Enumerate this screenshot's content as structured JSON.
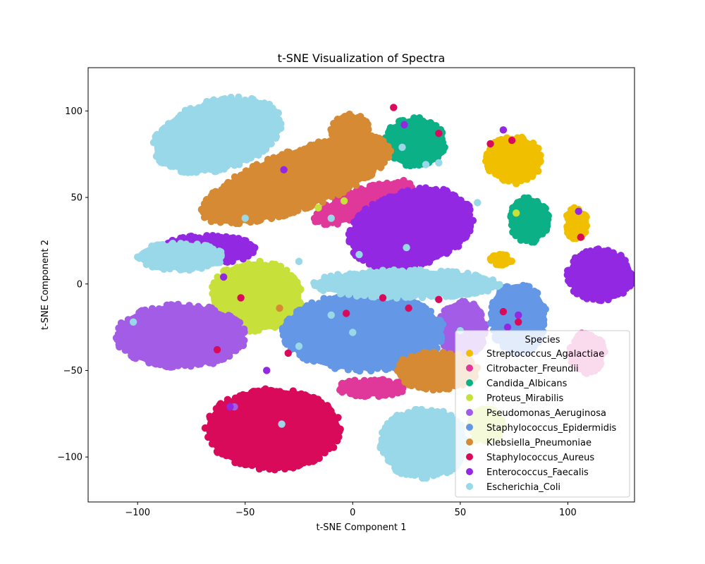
{
  "chart_data": {
    "type": "scatter",
    "title": "t-SNE Visualization of Spectra",
    "xlabel": "t-SNE Component 1",
    "ylabel": "t-SNE Component 2",
    "xlim": [
      -123,
      131
    ],
    "ylim": [
      -126,
      125
    ],
    "xticks": [
      -100,
      -50,
      0,
      50,
      100
    ],
    "yticks": [
      -100,
      -50,
      0,
      50,
      100
    ],
    "grid": false,
    "legend": {
      "title": "Species",
      "placement": "lower-right"
    },
    "series": [
      {
        "name": "Streptococcus_Agalactiae",
        "color": "#f0c000",
        "clusters": [
          {
            "cx": 75,
            "cy": 72,
            "rx": 13,
            "ry": 13
          },
          {
            "cx": 104,
            "cy": 35,
            "rx": 5,
            "ry": 9
          },
          {
            "cx": 69,
            "cy": 14,
            "rx": 5,
            "ry": 3
          }
        ],
        "points": [
          [
            104,
            39
          ],
          [
            76,
            58
          ]
        ]
      },
      {
        "name": "Citrobacter_Freundii",
        "color": "#e0389a",
        "clusters": [
          {
            "cx": 5,
            "cy": 47,
            "rx": 24,
            "ry": 8,
            "rotate": -20
          },
          {
            "cx": 9,
            "cy": -60,
            "rx": 16,
            "ry": 5
          },
          {
            "cx": 109,
            "cy": -40,
            "rx": 8,
            "ry": 12
          }
        ],
        "points": []
      },
      {
        "name": "Candida_Albicans",
        "color": "#0cb087",
        "clusters": [
          {
            "cx": 29,
            "cy": 82,
            "rx": 14,
            "ry": 14
          },
          {
            "cx": 82,
            "cy": 37,
            "rx": 9,
            "ry": 13
          }
        ],
        "points": []
      },
      {
        "name": "Proteus_Mirabilis",
        "color": "#c7e03a",
        "clusters": [
          {
            "cx": -45,
            "cy": -7,
            "rx": 21,
            "ry": 20
          },
          {
            "cx": 62,
            "cy": -82,
            "rx": 8,
            "ry": 10
          }
        ],
        "points": [
          [
            76,
            41
          ],
          [
            -16,
            44
          ],
          [
            -4,
            48
          ]
        ]
      },
      {
        "name": "Pseudomonas_Aeruginosa",
        "color": "#a25ce6",
        "clusters": [
          {
            "cx": -80,
            "cy": -30,
            "rx": 30,
            "ry": 18
          },
          {
            "cx": 51,
            "cy": -26,
            "rx": 11,
            "ry": 16
          }
        ],
        "points": [
          [
            -60,
            -32
          ],
          [
            -55,
            -71
          ]
        ]
      },
      {
        "name": "Staphylococcus_Epidermidis",
        "color": "#6497e6",
        "clusters": [
          {
            "cx": 5,
            "cy": -28,
            "rx": 37,
            "ry": 22
          },
          {
            "cx": 77,
            "cy": -20,
            "rx": 13,
            "ry": 20
          }
        ],
        "points": []
      },
      {
        "name": "Klebsiella_Pneumoniae",
        "color": "#d68a33",
        "clusters": [
          {
            "cx": -26,
            "cy": 60,
            "rx": 46,
            "ry": 17,
            "rotate": -20
          },
          {
            "cx": -1,
            "cy": 88,
            "rx": 9,
            "ry": 10
          },
          {
            "cx": 39,
            "cy": -50,
            "rx": 19,
            "ry": 11
          }
        ],
        "points": [
          [
            -34,
            -14
          ]
        ]
      },
      {
        "name": "Staphylococcus_Aureus",
        "color": "#d90a5a",
        "clusters": [
          {
            "cx": -37,
            "cy": -84,
            "rx": 31,
            "ry": 23
          }
        ],
        "points": [
          [
            19,
            102
          ],
          [
            40,
            87
          ],
          [
            64,
            81
          ],
          [
            74,
            83
          ],
          [
            106,
            27
          ],
          [
            -52,
            -8
          ],
          [
            -63,
            -38
          ],
          [
            -30,
            -40
          ],
          [
            -3,
            -17
          ],
          [
            14,
            -8
          ],
          [
            26,
            -14
          ],
          [
            40,
            -9
          ],
          [
            70,
            -16
          ],
          [
            77,
            -22
          ]
        ]
      },
      {
        "name": "Enterococcus_Faecalis",
        "color": "#9228e2",
        "clusters": [
          {
            "cx": 27,
            "cy": 32,
            "rx": 29,
            "ry": 22,
            "rotate": -15
          },
          {
            "cx": 115,
            "cy": 5,
            "rx": 15,
            "ry": 15
          },
          {
            "cx": -67,
            "cy": 20,
            "rx": 22,
            "ry": 8
          }
        ],
        "points": [
          [
            -32,
            66
          ],
          [
            24,
            92
          ],
          [
            70,
            89
          ],
          [
            105,
            42
          ],
          [
            72,
            -25
          ],
          [
            77,
            -18
          ],
          [
            -60,
            4
          ],
          [
            -57,
            -71
          ],
          [
            -40,
            -50
          ]
        ]
      },
      {
        "name": "Escherichia_Coli",
        "color": "#98d8e8",
        "clusters": [
          {
            "cx": -63,
            "cy": 86,
            "rx": 30,
            "ry": 20,
            "rotate": -15
          },
          {
            "cx": 25,
            "cy": 0,
            "rx": 43,
            "ry": 8
          },
          {
            "cx": 33,
            "cy": -92,
            "rx": 20,
            "ry": 20
          },
          {
            "cx": -80,
            "cy": 16,
            "rx": 20,
            "ry": 8
          }
        ],
        "points": [
          [
            -102,
            -22
          ],
          [
            -33,
            -81
          ],
          [
            23,
            79
          ],
          [
            58,
            47
          ],
          [
            -10,
            38
          ],
          [
            -50,
            38
          ],
          [
            3,
            17
          ],
          [
            25,
            21
          ],
          [
            50,
            -27
          ],
          [
            0,
            -28
          ],
          [
            -10,
            -18
          ],
          [
            -25,
            -36
          ],
          [
            40,
            70
          ],
          [
            34,
            69
          ],
          [
            -25,
            13
          ]
        ]
      }
    ]
  }
}
